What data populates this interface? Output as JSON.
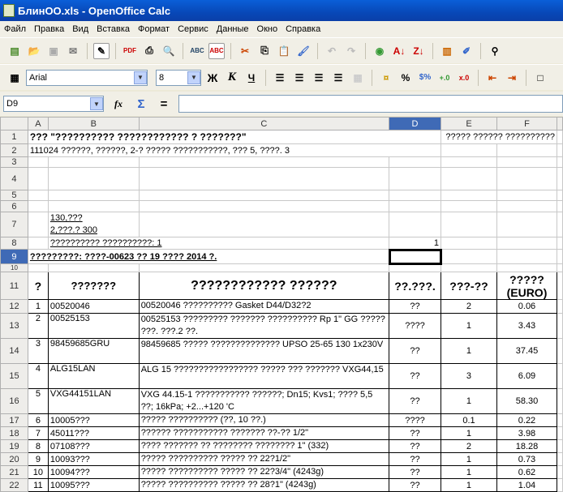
{
  "window": {
    "title": "БлинОО.xls - OpenOffice Calc"
  },
  "menu": [
    "Файл",
    "Правка",
    "Вид",
    "Вставка",
    "Формат",
    "Сервис",
    "Данные",
    "Окно",
    "Справка"
  ],
  "format_toolbar": {
    "font": "Arial",
    "size": "8",
    "bold": "Ж",
    "italic": "К",
    "underline": "Ч"
  },
  "formula_bar": {
    "cell_ref": "D9",
    "value": ""
  },
  "columns": [
    "A",
    "B",
    "C",
    "D",
    "E",
    "F"
  ],
  "sheet": {
    "r1_a": "??? \"?????????? ???????????? ? ???????\"",
    "r1_e": "????? ?????? ??????????",
    "r2_a": "111024 ??????, ??????, 2-? ????? ???????????, ??? 5, ????. 3",
    "r7_b": "130,??? 2,???.? 300",
    "r8_b": "?????????? ??????????:   1",
    "r8_d": "1",
    "r9_a": "?????????: ????-00623 ?? 19 ???? 2014 ?.",
    "headers": [
      "?",
      "???????",
      "???????????? ??????",
      "??.???.",
      "???-??",
      "????? (EURO)"
    ],
    "rows": [
      [
        "1",
        "00520046",
        "00520046 ?????????? Gasket D44/D32?2",
        "??",
        "2",
        "0.06"
      ],
      [
        "2",
        "00525153",
        "00525153 ????????? ??????? ?????????? Rp 1\" GG ????? ???. ???.2 ??.",
        "????",
        "1",
        "3.43"
      ],
      [
        "3",
        "98459685GRU",
        "98459685  ????? ?????????????? UPSO 25-65 130 1x230V",
        "??",
        "1",
        "37.45"
      ],
      [
        "4",
        "ALG15LAN",
        "ALG 15 ????????????????? ????? ??? ??????? VXG44,15",
        "??",
        "3",
        "6.09"
      ],
      [
        "5",
        "VXG44151LAN",
        "VXG 44.15-1 ??????????? ??????; Dn15; Kvs1; ???? 5,5 ??; 16kPa; +2...+120 'C",
        "??",
        "1",
        "58.30"
      ],
      [
        "6",
        "10005???",
        "????? ?????????? (??, 10 ??.)",
        "????",
        "0.1",
        "0.22"
      ],
      [
        "7",
        "45011???",
        "?????? ??????????? ??????? ??-?? 1/2\"",
        "??",
        "1",
        "3.98"
      ],
      [
        "8",
        "07108???",
        "???? ??????? ?? ???????? ???????? 1\" (332)",
        "??",
        "2",
        "18.28"
      ],
      [
        "9",
        "10093???",
        "????? ?????????? ????? ?? 22?1/2\"",
        "??",
        "1",
        "0.73"
      ],
      [
        "10",
        "10094???",
        "????? ?????????? ????? ?? 22?3/4\" (4243g)",
        "??",
        "1",
        "0.62"
      ],
      [
        "11",
        "10095???",
        "????? ?????????? ????? ?? 28?1\" (4243g)",
        "??",
        "1",
        "1.04"
      ]
    ]
  }
}
